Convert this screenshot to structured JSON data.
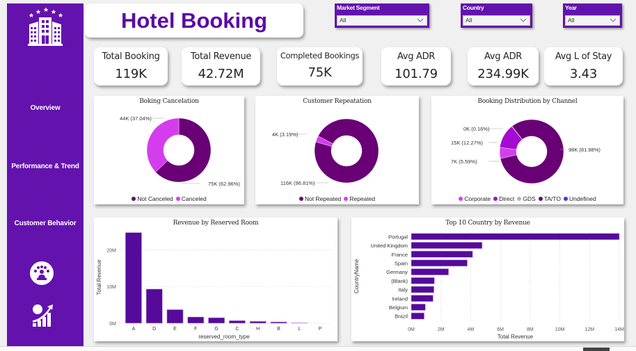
{
  "colors": {
    "brand": "#6412ad",
    "title": "#5b0aa5",
    "dark_purple": "#690075",
    "magenta": "#d43ded",
    "direct_purple": "#a40bd0",
    "bar": "#550a9b",
    "gds": "#b3b3b3",
    "undefined": "#3b3bd1"
  },
  "sidebar": {
    "logo_icon": "hotel-building-stars-icon",
    "items": [
      {
        "label": "Overview"
      },
      {
        "label": "Performance & Trend"
      },
      {
        "label": "Customer Behavior"
      }
    ],
    "icons": [
      "customer-group-icon",
      "growth-chart-icon"
    ]
  },
  "header": {
    "title": "Hotel Booking"
  },
  "filters": [
    {
      "label": "Market Segment",
      "value": "All"
    },
    {
      "label": "Country",
      "value": "All"
    },
    {
      "label": "Year",
      "value": "All"
    }
  ],
  "kpis": [
    {
      "label": "Total Booking",
      "value": "119K"
    },
    {
      "label": "Total Revenue",
      "value": "42.72M"
    },
    {
      "label": "Completed Bookings",
      "value": "75K"
    },
    {
      "label": "Avg ADR",
      "value": "101.79"
    },
    {
      "label": "Avg ADR",
      "value": "234.99K"
    },
    {
      "label": "Avg L of Stay",
      "value": "3.43"
    }
  ],
  "chart_data": [
    {
      "type": "pie",
      "variant": "donut",
      "title": "Boking Cancelation",
      "categories": [
        "Not Canceled",
        "Canceled"
      ],
      "values": [
        75,
        44
      ],
      "percents": [
        62.96,
        37.04
      ],
      "labels": [
        "75K (62.96%)",
        "44K (37.04%)"
      ],
      "colors": [
        "#690075",
        "#d43ded"
      ],
      "legend": "bottom-center"
    },
    {
      "type": "pie",
      "variant": "donut",
      "title": "Customer Repeatation",
      "categories": [
        "Not Repeated",
        "Repeated"
      ],
      "values": [
        116,
        4
      ],
      "percents": [
        96.81,
        3.19
      ],
      "labels": [
        "116K (96.81%)",
        "4K (3.19%)"
      ],
      "colors": [
        "#690075",
        "#d43ded"
      ],
      "legend": "bottom-center"
    },
    {
      "type": "pie",
      "variant": "donut",
      "title": "Booking Distribution by Channel",
      "categories": [
        "Corporate",
        "Direct",
        "GDS",
        "TA/TO",
        "Undefined"
      ],
      "values": [
        7,
        15,
        0,
        98,
        0
      ],
      "percents": [
        5.59,
        12.27,
        0.16,
        81.98,
        0.0
      ],
      "labels": [
        "7K (5.59%)",
        "15K (12.27%)",
        "0K (0.16%)",
        "98K (81.98%)",
        ""
      ],
      "colors": [
        "#d43ded",
        "#a40bd0",
        "#b3b3b3",
        "#690075",
        "#3b3bd1"
      ],
      "legend": "bottom-center"
    },
    {
      "type": "bar",
      "title": "Revenue by Reserved Room",
      "xlabel": "reserved_room_type",
      "ylabel": "Total Revenue",
      "categories": [
        "A",
        "D",
        "E",
        "F",
        "G",
        "C",
        "H",
        "B",
        "L",
        "P"
      ],
      "values": [
        24.7,
        9.3,
        3.7,
        1.7,
        1.5,
        0.7,
        0.5,
        0.35,
        0.15,
        0.0
      ],
      "unit": "M",
      "yticks": [
        "0M",
        "10M",
        "20M"
      ],
      "ylim": [
        0,
        25
      ],
      "grid": true
    },
    {
      "type": "bar",
      "orientation": "horizontal",
      "title": "Top 10 Country by Revenue",
      "xlabel": "Total Revenue",
      "ylabel": "CountryName",
      "categories": [
        "Portugal",
        "United Kingdom",
        "France",
        "Spain",
        "Germany",
        "(Blank)",
        "Italy",
        "Ireland",
        "Belgium",
        "Brazil"
      ],
      "values": [
        14.0,
        4.77,
        4.13,
        3.77,
        2.51,
        1.56,
        1.53,
        1.47,
        0.95,
        0.87
      ],
      "unit": "M",
      "xticks": [
        "0M",
        "2M",
        "4M",
        "6M",
        "8M",
        "10M",
        "12M",
        "14M"
      ],
      "xlim": [
        0,
        14
      ],
      "grid": true
    }
  ]
}
